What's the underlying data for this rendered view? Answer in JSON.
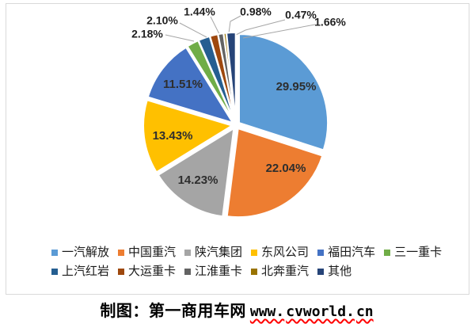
{
  "chart_data": {
    "type": "pie",
    "title": "",
    "unit": "%",
    "direction": "clockwise",
    "start_angle_deg": 0,
    "legend_position": "bottom",
    "slices": [
      {
        "name": "一汽解放",
        "value": 29.95,
        "label": "29.95%",
        "color": "#5B9BD5"
      },
      {
        "name": "中国重汽",
        "value": 22.04,
        "label": "22.04%",
        "color": "#ED7D31"
      },
      {
        "name": "陕汽集团",
        "value": 14.23,
        "label": "14.23%",
        "color": "#A5A5A5"
      },
      {
        "name": "东风公司",
        "value": 13.43,
        "label": "13.43%",
        "color": "#FFC000"
      },
      {
        "name": "福田汽车",
        "value": 11.51,
        "label": "11.51%",
        "color": "#4472C4"
      },
      {
        "name": "三一重卡",
        "value": 2.18,
        "label": "2.18%",
        "color": "#70AD47"
      },
      {
        "name": "上汽红岩",
        "value": 2.1,
        "label": "2.10%",
        "color": "#255E91"
      },
      {
        "name": "大运重卡",
        "value": 1.44,
        "label": "1.44%",
        "color": "#9E480E"
      },
      {
        "name": "江淮重卡",
        "value": 0.98,
        "label": "0.98%",
        "color": "#636363"
      },
      {
        "name": "北奔重汽",
        "value": 0.47,
        "label": "0.47%",
        "color": "#997300"
      },
      {
        "name": "其他",
        "value": 1.66,
        "label": "1.66%",
        "color": "#264478"
      }
    ]
  },
  "caption": {
    "text": "制图：第一商用车网",
    "url": "www.cvworld.cn",
    "url_parts": [
      "www.",
      "cvworld.",
      "cn"
    ],
    "squiggle_color": "#FF0000"
  }
}
